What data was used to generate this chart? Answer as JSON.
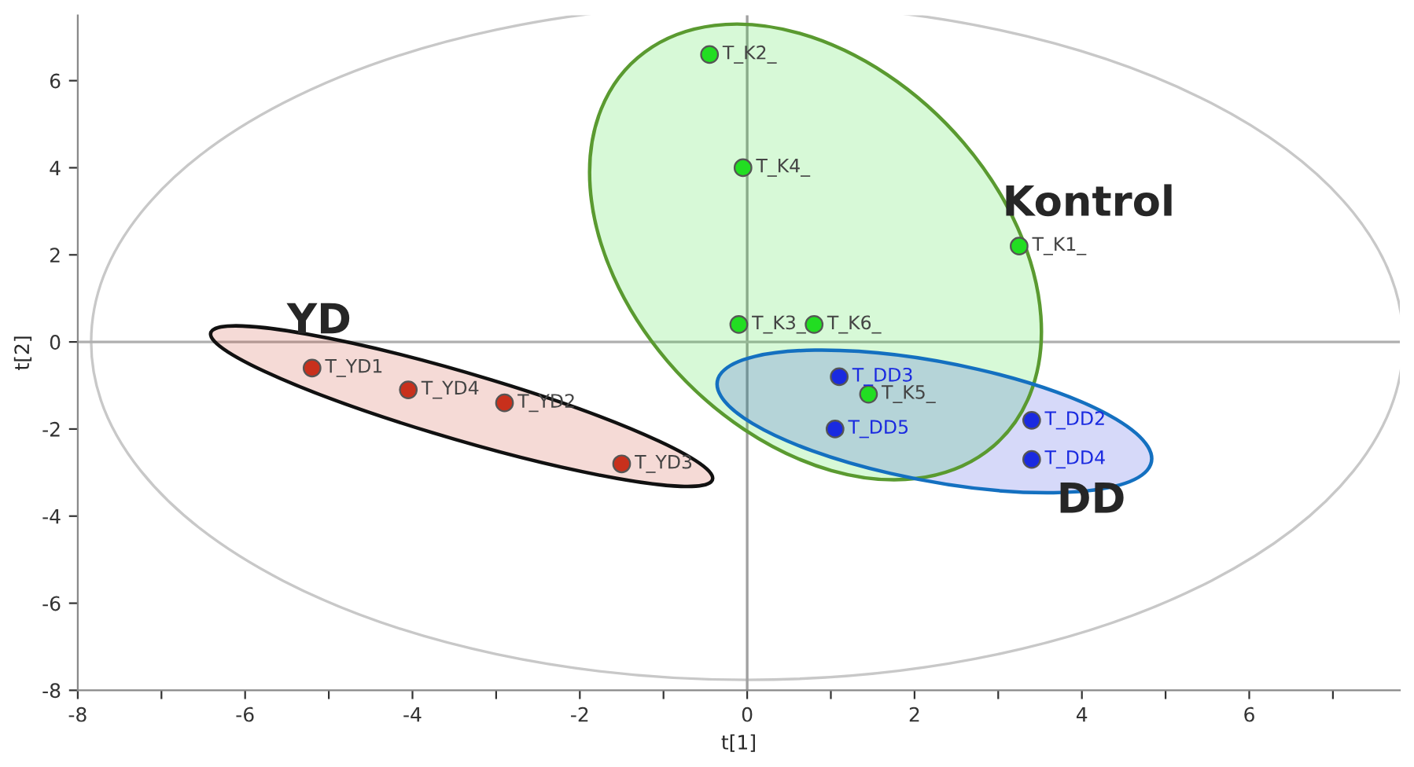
{
  "chart_data": {
    "type": "scatter",
    "xlabel": "t[1]",
    "ylabel": "t[2]",
    "xlim": [
      -8,
      7.8
    ],
    "ylim": [
      -8,
      7.5
    ],
    "xticks": [
      -8,
      {
        "value": -7,
        "label": null
      },
      -6,
      {
        "value": -5,
        "label": null
      },
      -4,
      {
        "value": -3,
        "label": null
      },
      -2,
      {
        "value": -1,
        "label": null
      },
      0,
      {
        "value": 1,
        "label": null
      },
      2,
      {
        "value": 3,
        "label": null
      },
      4,
      {
        "value": 5,
        "label": null
      },
      6,
      {
        "value": 7,
        "label": null
      }
    ],
    "yticks": [
      -8,
      -6,
      -4,
      -2,
      0,
      2,
      4,
      6
    ],
    "grid": false,
    "legend": false,
    "marker": "circle",
    "ref_lines": [
      {
        "axis": "x",
        "value": 0,
        "color": "#a0a0a0"
      },
      {
        "axis": "y",
        "value": 0,
        "color": "#b0b0b0"
      }
    ],
    "series": [
      {
        "name": "Kontrol",
        "color": "#22dd22",
        "x": [
          -0.45,
          -0.05,
          3.25,
          -0.1,
          0.8,
          1.45
        ],
        "values": [
          6.6,
          4.0,
          2.2,
          0.4,
          0.4,
          -1.2
        ],
        "value_labels": [
          "T_K2_",
          "T_K4_",
          "T_K1_",
          "T_K3_",
          "T_K6_",
          "T_K5_"
        ]
      },
      {
        "name": "YD",
        "color": "#c8301c",
        "x": [
          -5.2,
          -4.05,
          -2.9,
          -1.5
        ],
        "values": [
          -0.6,
          -1.1,
          -1.4,
          -2.8
        ],
        "value_labels": [
          "T_YD1",
          "T_YD4",
          "T_YD2",
          "T_YD3"
        ]
      },
      {
        "name": "DD",
        "color": "#1a2ae0",
        "x": [
          1.1,
          1.05,
          3.4,
          3.4
        ],
        "values": [
          -0.8,
          -2.0,
          -1.8,
          -2.7
        ],
        "value_labels": [
          "T_DD3",
          "T_DD5",
          "T_DD2",
          "T_DD4"
        ]
      }
    ]
  }
}
